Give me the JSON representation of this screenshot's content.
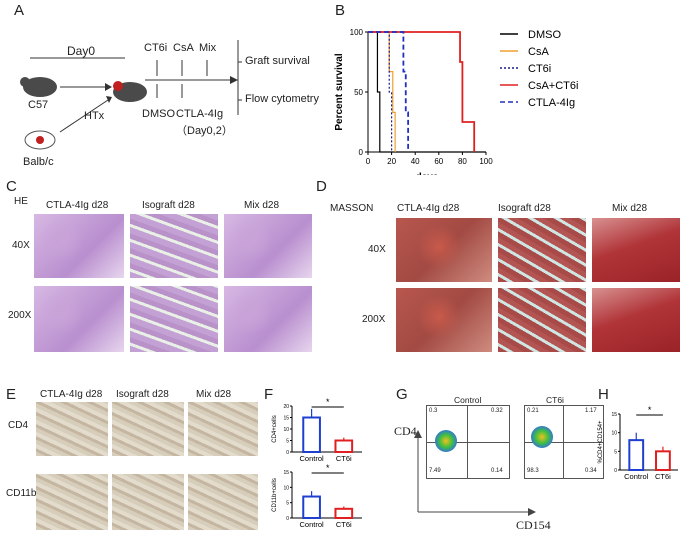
{
  "panels": {
    "A": "A",
    "B": "B",
    "C": "C",
    "D": "D",
    "E": "E",
    "F": "F",
    "G": "G",
    "H": "H"
  },
  "schematic": {
    "day0": "Day0",
    "c57": "C57",
    "htx": "HTx",
    "balbc": "Balb/c",
    "ct6i": "CT6i",
    "csa": "CsA",
    "mix": "Mix",
    "dmso": "DMSO",
    "ctla4": "CTLA-4Ig",
    "ctla4_days": "（Day0,2）",
    "graft_survival": "Graft survival",
    "flow_cytometry": "Flow cytometry"
  },
  "survival": {
    "ylabel": "Percent survival",
    "xlabel": "days",
    "legend": [
      "DMSO",
      "CsA",
      "CT6i",
      "CsA+CT6i",
      "CTLA-4Ig"
    ],
    "colors": [
      "#000000",
      "#f0a030",
      "#1a1a8a",
      "#e02020",
      "#2030c0"
    ]
  },
  "chart_data": [
    {
      "type": "line",
      "ylabel": "Percent survival",
      "xlabel": "days",
      "xlim": [
        0,
        100
      ],
      "ylim": [
        0,
        100
      ],
      "xticks": [
        0,
        20,
        40,
        60,
        80,
        100
      ],
      "yticks": [
        0,
        50,
        100
      ],
      "series": [
        {
          "name": "DMSO",
          "x": [
            0,
            6,
            8,
            10,
            100
          ],
          "y": [
            100,
            100,
            50,
            0,
            0
          ]
        },
        {
          "name": "CsA",
          "x": [
            0,
            15,
            18,
            21,
            23
          ],
          "y": [
            100,
            100,
            67,
            33,
            0
          ]
        },
        {
          "name": "CT6i",
          "x": [
            0,
            16,
            18,
            20
          ],
          "y": [
            100,
            100,
            50,
            0
          ]
        },
        {
          "name": "CsA+CT6i",
          "x": [
            0,
            65,
            78,
            80,
            90
          ],
          "y": [
            100,
            100,
            75,
            25,
            0
          ]
        },
        {
          "name": "CTLA-4Ig",
          "x": [
            0,
            23,
            30,
            32,
            34
          ],
          "y": [
            100,
            100,
            67,
            33,
            0
          ]
        }
      ]
    },
    {
      "type": "bar",
      "ylabel": "CD4+cells",
      "categories": [
        "Control",
        "CT6i"
      ],
      "values": [
        15,
        5
      ],
      "ylim": [
        0,
        20
      ],
      "yticks": [
        0,
        5,
        10,
        15,
        20
      ],
      "significance": "*"
    },
    {
      "type": "bar",
      "ylabel": "CD11b+cells",
      "categories": [
        "Control",
        "CT6i"
      ],
      "values": [
        7,
        3
      ],
      "ylim": [
        0,
        15
      ],
      "yticks": [
        0,
        5,
        10,
        15
      ],
      "significance": "*"
    },
    {
      "type": "bar",
      "ylabel": "%CD4+CD154+",
      "categories": [
        "Control",
        "CT6i"
      ],
      "values": [
        8,
        5
      ],
      "ylim": [
        0,
        15
      ],
      "yticks": [
        0,
        5,
        10,
        15
      ],
      "significance": "*"
    }
  ],
  "he": {
    "title": "HE",
    "cols": [
      "CTLA-4Ig d28",
      "Isograft d28",
      "Mix d28"
    ],
    "rows": [
      "40X",
      "200X"
    ]
  },
  "masson": {
    "title": "MASSON",
    "cols": [
      "CTLA-4Ig d28",
      "Isograft d28",
      "Mix d28"
    ],
    "rows": [
      "40X",
      "200X"
    ]
  },
  "ihc": {
    "cols": [
      "CTLA-4Ig d28",
      "Isograft d28",
      "Mix d28"
    ],
    "rows": [
      "CD4",
      "CD11b"
    ]
  },
  "flow": {
    "control": "Control",
    "ct6i": "CT6i",
    "yaxis": "CD4",
    "xaxis": "CD154",
    "q_control": [
      "0.3",
      "0.32",
      "7.49",
      "0.14"
    ],
    "q_ct6i": [
      "0.21",
      "1.17",
      "98.3",
      "0.34"
    ]
  }
}
